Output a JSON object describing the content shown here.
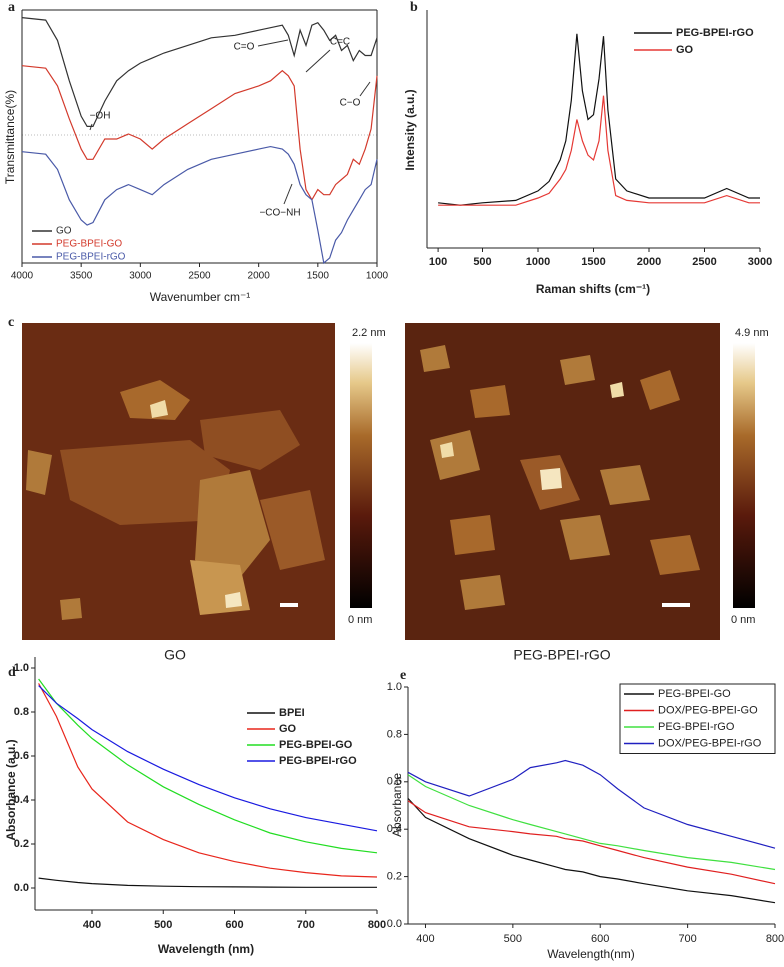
{
  "chart_data": [
    {
      "type": "line",
      "panel_label": "a",
      "xlabel": "Wavenumber cm⁻¹",
      "ylabel": "Transmittance(%)",
      "x": [
        4000,
        3800,
        3700,
        3600,
        3500,
        3450,
        3400,
        3300,
        3200,
        3100,
        3000,
        2900,
        2800,
        2600,
        2400,
        2200,
        2000,
        1900,
        1800,
        1750,
        1700,
        1650,
        1600,
        1550,
        1500,
        1450,
        1400,
        1350,
        1300,
        1250,
        1200,
        1150,
        1100,
        1050,
        1000
      ],
      "series": [
        {
          "name": "GO",
          "color": "#333333",
          "values": [
            97,
            96,
            88,
            72,
            58,
            54,
            54,
            64,
            72,
            76,
            79,
            81,
            83,
            86,
            89,
            90,
            92,
            93,
            94,
            90,
            82,
            92,
            86,
            94,
            95,
            92,
            88,
            90,
            84,
            86,
            80,
            84,
            82,
            82,
            89
          ]
        },
        {
          "name": "PEG-BPEI-GO",
          "color": "#d33a2c",
          "values": [
            78,
            77,
            70,
            57,
            45,
            41,
            41,
            49,
            49,
            51,
            49,
            45,
            49,
            55,
            61,
            67,
            70,
            72,
            76,
            74,
            70,
            45,
            29,
            25,
            29,
            27,
            27,
            31,
            33,
            35,
            41,
            39,
            45,
            53,
            74
          ]
        },
        {
          "name": "PEG-BPEI-rGO",
          "color": "#4a5aa8",
          "values": [
            44,
            43,
            37,
            25,
            17,
            15,
            16,
            25,
            29,
            31,
            29,
            27,
            31,
            37,
            41,
            43,
            45,
            46,
            45,
            43,
            39,
            31,
            27,
            25,
            13,
            0,
            2,
            9,
            12,
            17,
            21,
            25,
            29,
            31,
            41
          ]
        }
      ],
      "xlim": [
        4000,
        1000
      ],
      "ylim": [
        0,
        100
      ],
      "xticks": [
        4000,
        3500,
        3000,
        2500,
        2000,
        1500,
        1000
      ],
      "legend": "lower left",
      "annotations": [
        "−OH",
        "C=O",
        "C=C",
        "C−O",
        "−CO−NH"
      ]
    },
    {
      "type": "line",
      "panel_label": "b",
      "xlabel": "Raman shifts (cm⁻¹)",
      "ylabel": "Intensity (a.u.)",
      "x": [
        100,
        300,
        500,
        800,
        1000,
        1100,
        1200,
        1250,
        1300,
        1350,
        1400,
        1450,
        1500,
        1550,
        1590,
        1630,
        1700,
        1800,
        2000,
        2300,
        2500,
        2700,
        2900,
        3000
      ],
      "series": [
        {
          "name": "PEG-BPEI-rGO",
          "color": "#111111",
          "values": [
            19,
            18,
            19,
            20,
            24,
            28,
            37,
            45,
            62,
            90,
            66,
            54,
            56,
            71,
            89,
            58,
            29,
            24,
            21,
            21,
            21,
            25,
            21,
            21
          ]
        },
        {
          "name": "GO",
          "color": "#e53935",
          "values": [
            18,
            18,
            18,
            18,
            21,
            23,
            29,
            33,
            41,
            54,
            45,
            39,
            37,
            45,
            64,
            41,
            22,
            20,
            19,
            19,
            19,
            22,
            19,
            19
          ]
        }
      ],
      "xlim": [
        0,
        3000
      ],
      "ylim": [
        0,
        100
      ],
      "xticks": [
        100,
        500,
        1000,
        1500,
        2000,
        2500,
        3000
      ],
      "legend": "upper right"
    },
    {
      "type": "line",
      "panel_label": "d",
      "xlabel": "Wavelength (nm)",
      "ylabel": "Absorbance (a.u.)",
      "x": [
        325,
        350,
        380,
        400,
        450,
        500,
        550,
        600,
        650,
        700,
        750,
        800
      ],
      "series": [
        {
          "name": "BPEI",
          "color": "#111111",
          "values": [
            0.045,
            0.035,
            0.025,
            0.02,
            0.012,
            0.008,
            0.006,
            0.005,
            0.004,
            0.003,
            0.003,
            0.003
          ]
        },
        {
          "name": "GO",
          "color": "#e8261c",
          "values": [
            0.93,
            0.78,
            0.55,
            0.45,
            0.3,
            0.22,
            0.16,
            0.12,
            0.09,
            0.07,
            0.055,
            0.05
          ]
        },
        {
          "name": "PEG-BPEI-GO",
          "color": "#22dd22",
          "values": [
            0.95,
            0.84,
            0.74,
            0.68,
            0.56,
            0.46,
            0.38,
            0.31,
            0.25,
            0.21,
            0.18,
            0.16
          ]
        },
        {
          "name": "PEG-BPEI-rGO",
          "color": "#1a1ae0",
          "values": [
            0.92,
            0.84,
            0.77,
            0.72,
            0.62,
            0.54,
            0.47,
            0.41,
            0.36,
            0.32,
            0.29,
            0.26
          ]
        }
      ],
      "xlim": [
        320,
        800
      ],
      "ylim": [
        -0.1,
        1.05
      ],
      "xticks": [
        400,
        500,
        600,
        700,
        800
      ],
      "yticks": [
        {
          "value": 0,
          "label": "0.0"
        },
        0.2,
        0.4,
        0.6,
        0.8,
        {
          "value": 1,
          "label": "1.0"
        }
      ],
      "legend": "upper right"
    },
    {
      "type": "line",
      "panel_label": "e",
      "xlabel": "Wavelength(nm)",
      "ylabel": "Absorbance",
      "x": [
        380,
        400,
        450,
        500,
        520,
        550,
        560,
        580,
        600,
        620,
        650,
        700,
        750,
        800
      ],
      "series": [
        {
          "name": "PEG-BPEI-GO",
          "color": "#111111",
          "values": [
            0.53,
            0.45,
            0.36,
            0.29,
            0.27,
            0.24,
            0.23,
            0.22,
            0.2,
            0.19,
            0.17,
            0.14,
            0.12,
            0.09
          ]
        },
        {
          "name": "DOX/PEG-BPEI-GO",
          "color": "#e02020",
          "values": [
            0.52,
            0.47,
            0.41,
            0.39,
            0.38,
            0.37,
            0.36,
            0.35,
            0.33,
            0.31,
            0.28,
            0.24,
            0.21,
            0.17
          ]
        },
        {
          "name": "PEG-BPEI-rGO",
          "color": "#40e040",
          "values": [
            0.63,
            0.58,
            0.5,
            0.44,
            0.42,
            0.39,
            0.38,
            0.36,
            0.34,
            0.33,
            0.31,
            0.28,
            0.26,
            0.23
          ]
        },
        {
          "name": "DOX/PEG-BPEI-rGO",
          "color": "#2020c0",
          "values": [
            0.64,
            0.6,
            0.54,
            0.61,
            0.66,
            0.68,
            0.69,
            0.67,
            0.63,
            0.57,
            0.49,
            0.42,
            0.37,
            0.32
          ]
        }
      ],
      "xlim": [
        380,
        800
      ],
      "ylim": [
        0,
        1
      ],
      "xticks": [
        400,
        500,
        600,
        700,
        800
      ],
      "yticks": [
        {
          "value": 0,
          "label": "0.0"
        },
        0.2,
        0.4,
        0.6,
        0.8,
        {
          "value": 1,
          "label": "1.0"
        }
      ],
      "legend": "upper right"
    }
  ],
  "afm": {
    "panel_label": "c",
    "images": [
      {
        "caption": "GO",
        "scale_max": "2.2 nm",
        "scale_min": "0 nm"
      },
      {
        "caption": "PEG-BPEI-rGO",
        "scale_max": "4.9 nm",
        "scale_min": "0 nm"
      }
    ]
  }
}
